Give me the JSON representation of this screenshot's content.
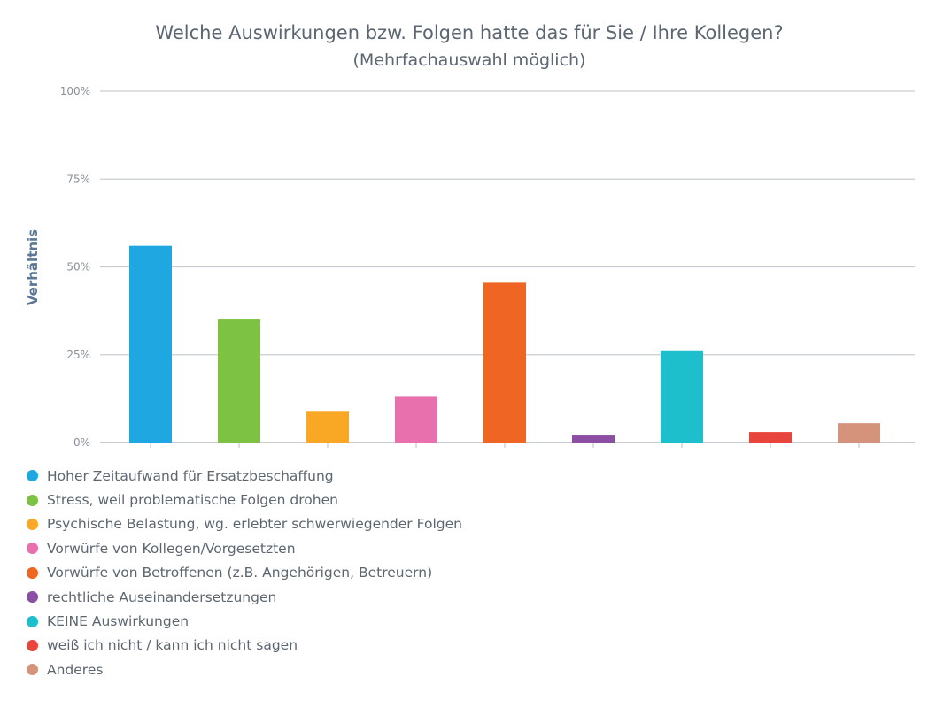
{
  "chart_data": {
    "type": "bar",
    "title": "Welche Auswirkungen bzw. Folgen hatte das für Sie / Ihre Kollegen?",
    "subtitle": "(Mehrfachauswahl möglich)",
    "ylabel": "Verhältnis",
    "xlabel": "",
    "ylim": [
      0,
      100
    ],
    "yticks": [
      0,
      25,
      50,
      75,
      100
    ],
    "ytick_labels": [
      "0%",
      "25%",
      "50%",
      "75%",
      "100%"
    ],
    "grid": true,
    "legend_position": "bottom-left",
    "categories": [
      "Hoher Zeitaufwand für Ersatzbeschaffung",
      "Stress, weil problematische Folgen drohen",
      "Psychische Belastung, wg. erlebter schwerwiegender Folgen",
      "Vorwürfe von Kollegen/Vorgesetzten",
      "Vorwürfe von Betroffenen (z.B. Angehörigen, Betreuern)",
      "rechtliche Auseinandersetzungen",
      "KEINE Auswirkungen",
      "weiß ich nicht / kann ich nicht sagen",
      "Anderes"
    ],
    "values": [
      56,
      35,
      9,
      13,
      45.5,
      2,
      26,
      3,
      5.5
    ],
    "colors": [
      "#1ea7e1",
      "#7dc242",
      "#f9a825",
      "#e770ad",
      "#ef6523",
      "#8b4ea3",
      "#1dbfcc",
      "#e8453c",
      "#d4937a"
    ]
  }
}
